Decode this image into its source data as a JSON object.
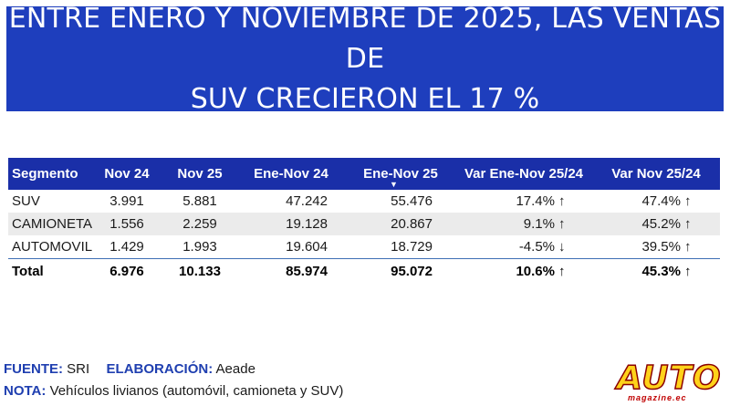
{
  "header": {
    "title_line1": "ENTRE ENERO Y NOVIEMBRE DE 2025, LAS VENTAS DE",
    "title_line2": "SUV CRECIERON EL 17 %"
  },
  "table": {
    "columns": [
      "Segmento",
      "Nov 24",
      "Nov 25",
      "Ene-Nov 24",
      "Ene-Nov 25",
      "Var Ene-Nov 25/24",
      "Var Nov 25/24"
    ],
    "sorted_column_icon": "sort-down-icon",
    "rows": [
      {
        "segment": "SUV",
        "nov24": "3.991",
        "nov25": "5.881",
        "enenov24": "47.242",
        "enenov25": "55.476",
        "var_enenov": "17.4%",
        "var_enenov_trend": "up",
        "var_nov": "47.4%",
        "var_nov_trend": "up"
      },
      {
        "segment": "CAMIONETA",
        "nov24": "1.556",
        "nov25": "2.259",
        "enenov24": "19.128",
        "enenov25": "20.867",
        "var_enenov": "9.1%",
        "var_enenov_trend": "up",
        "var_nov": "45.2%",
        "var_nov_trend": "up"
      },
      {
        "segment": "AUTOMOVIL",
        "nov24": "1.429",
        "nov25": "1.993",
        "enenov24": "19.604",
        "enenov25": "18.729",
        "var_enenov": "-4.5%",
        "var_enenov_trend": "down",
        "var_nov": "39.5%",
        "var_nov_trend": "up"
      }
    ],
    "total": {
      "segment": "Total",
      "nov24": "6.976",
      "nov25": "10.133",
      "enenov24": "85.974",
      "enenov25": "95.072",
      "var_enenov": "10.6%",
      "var_enenov_trend": "up",
      "var_nov": "45.3%",
      "var_nov_trend": "up"
    }
  },
  "footer": {
    "source_label": "FUENTE:",
    "source_value": "SRI",
    "elab_label": "ELABORACIÓN:",
    "elab_value": "Aeade",
    "note_label": "NOTA:",
    "note_value": "Vehículos livianos (automóvil, camioneta y SUV)"
  },
  "logo": {
    "word": "AUTO",
    "sub": "magazine.ec"
  },
  "colors": {
    "banner": "#1e3ebd",
    "header_row": "#1a2fa8",
    "positive": "#0f9a2e",
    "negative": "#e01010",
    "label": "#1f3fb0"
  }
}
